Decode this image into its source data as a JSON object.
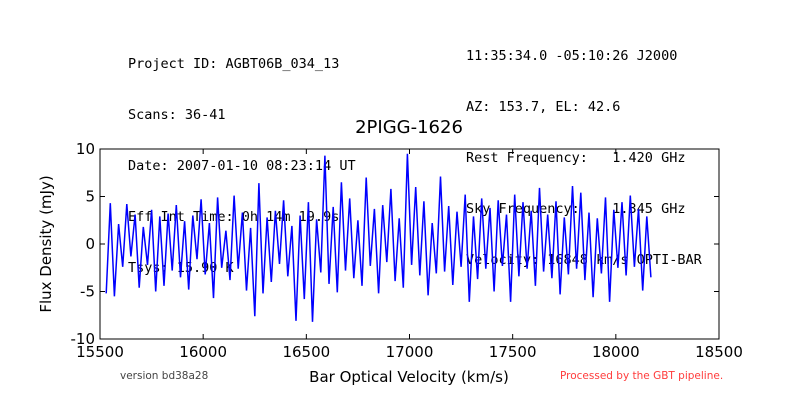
{
  "header_left": [
    "Project ID: AGBT06B_034_13",
    "Scans: 36-41",
    "Date: 2007-01-10 08:23:14 UT",
    "Eff Int Time: 0h 14m 19.9s",
    "Tsys: 15.90 K"
  ],
  "header_right": [
    "11:35:34.0 -05:10:26 J2000",
    "AZ: 153.7, EL: 42.6",
    "Rest Frequency:   1.420 GHz",
    "Sky Frequency:    1.345 GHz",
    "Velocity: 16848 km/s OPTI-BAR"
  ],
  "footer": {
    "version": "version bd38a28",
    "pipeline": "Processed by the GBT pipeline."
  },
  "colors": {
    "series": "#0000ff",
    "axes": "#000000",
    "pipeline_note": "#ff3b3b"
  },
  "chart_data": {
    "type": "line",
    "title": "2PIGG-1626",
    "xlabel": "Bar Optical Velocity (km/s)",
    "ylabel": "Flux Density (mJy)",
    "xlim": [
      15500,
      18500
    ],
    "ylim": [
      -10,
      10
    ],
    "xticks": [
      15500,
      16000,
      16500,
      17000,
      17500,
      18000,
      18500
    ],
    "yticks": [
      -10,
      -5,
      0,
      5,
      10
    ],
    "grid": false,
    "legend": "none",
    "series": [
      {
        "x": [
          15530,
          15550,
          15570,
          15590,
          15610,
          15630,
          15650,
          15670,
          15690,
          15710,
          15730,
          15750,
          15770,
          15790,
          15810,
          15830,
          15850,
          15870,
          15890,
          15910,
          15930,
          15950,
          15970,
          15990,
          16010,
          16030,
          16050,
          16070,
          16090,
          16110,
          16130,
          16150,
          16170,
          16190,
          16210,
          16230,
          16250,
          16270,
          16290,
          16310,
          16330,
          16350,
          16370,
          16390,
          16410,
          16430,
          16450,
          16470,
          16490,
          16510,
          16530,
          16550,
          16570,
          16590,
          16610,
          16630,
          16650,
          16670,
          16690,
          16710,
          16730,
          16750,
          16770,
          16790,
          16810,
          16830,
          16850,
          16870,
          16890,
          16910,
          16930,
          16950,
          16970,
          16990,
          17010,
          17030,
          17050,
          17070,
          17090,
          17110,
          17130,
          17150,
          17170,
          17190,
          17210,
          17230,
          17250,
          17270,
          17290,
          17310,
          17330,
          17350,
          17370,
          17390,
          17410,
          17430,
          17450,
          17470,
          17490,
          17510,
          17530,
          17550,
          17570,
          17590,
          17610,
          17630,
          17650,
          17670,
          17690,
          17710,
          17730,
          17750,
          17770,
          17790,
          17810,
          17830,
          17850,
          17870,
          17890,
          17910,
          17930,
          17950,
          17970,
          17990,
          18010,
          18030,
          18050,
          18070,
          18090,
          18110,
          18130,
          18150,
          18170
        ],
        "y": [
          -5.2,
          4.3,
          -5.5,
          2.1,
          -2.4,
          4.2,
          -1.3,
          3.1,
          -4.6,
          1.8,
          -2.2,
          3.6,
          -5,
          2.9,
          -4.4,
          3.2,
          -2.8,
          4.1,
          -3.5,
          2.4,
          -4.8,
          3,
          -1.6,
          4.7,
          -3.2,
          2.2,
          -5.7,
          4.9,
          -2.5,
          1.4,
          -3.8,
          5.1,
          -2.6,
          3.3,
          -4.9,
          1.7,
          -7.6,
          6.4,
          -5.2,
          2.8,
          -4,
          3.5,
          -2.1,
          4.6,
          -3.4,
          1.9,
          -8.1,
          3,
          -5.8,
          4.4,
          -8.2,
          2.6,
          -3,
          9.3,
          -4.2,
          3.9,
          -5.1,
          6.5,
          -2.8,
          4.8,
          -3.6,
          2.5,
          -4.4,
          7,
          -2.3,
          3.7,
          -5.2,
          4.1,
          -1.9,
          5.8,
          -3.9,
          2.7,
          -4.6,
          9.5,
          -2.2,
          6,
          -3.3,
          4.5,
          -5.4,
          2.2,
          -3.1,
          7.1,
          -2.9,
          4,
          -4.3,
          3.4,
          -2.4,
          5.2,
          -6.1,
          2.9,
          -3.7,
          4.8,
          -2.6,
          3.8,
          -5,
          4.6,
          -2.3,
          3.1,
          -6.1,
          5.2,
          -3.4,
          4.4,
          -2.6,
          3.5,
          -4.4,
          5.9,
          -2.9,
          3.1,
          -3.6,
          4.5,
          -5.3,
          2.8,
          -3.2,
          6.1,
          -2.6,
          5.4,
          -3.8,
          3.3,
          -5.6,
          2.7,
          -3.1,
          4.9,
          -6.1,
          3.6,
          -2.5,
          4.4,
          -3.3,
          5.1,
          -2.4,
          3.7,
          -4.9,
          2.9,
          -3.5
        ]
      }
    ]
  }
}
